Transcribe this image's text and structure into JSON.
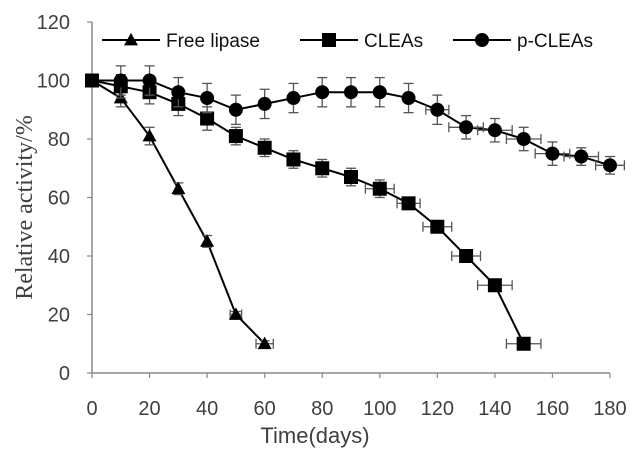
{
  "chart_data": {
    "type": "line",
    "title": "",
    "xlabel": "Time(days)",
    "ylabel": "Relative activity/%",
    "xlim": [
      0,
      180
    ],
    "ylim": [
      0,
      120
    ],
    "x_ticks": [
      0,
      20,
      40,
      60,
      80,
      100,
      120,
      140,
      160,
      180
    ],
    "y_ticks": [
      0,
      20,
      40,
      60,
      80,
      100,
      120
    ],
    "grid": false,
    "legend_position": "top",
    "series": [
      {
        "name": "Free lipase",
        "marker": "triangle",
        "x": [
          0,
          10,
          20,
          30,
          40,
          50,
          60
        ],
        "y": [
          100,
          94,
          81,
          63,
          45,
          20,
          10
        ],
        "y_err": [
          0,
          3,
          3,
          2,
          2,
          1,
          1
        ],
        "x_err": [
          0,
          0,
          0,
          0,
          0,
          2,
          3
        ]
      },
      {
        "name": "CLEAs",
        "marker": "square",
        "x": [
          0,
          10,
          20,
          30,
          40,
          50,
          60,
          70,
          80,
          90,
          100,
          110,
          120,
          130,
          140,
          150
        ],
        "y": [
          100,
          98,
          96,
          92,
          87,
          81,
          77,
          73,
          70,
          67,
          63,
          58,
          50,
          40,
          30,
          10
        ],
        "y_err": [
          0,
          4,
          4,
          4,
          4,
          3,
          3,
          3,
          3,
          3,
          3,
          2,
          2,
          2,
          2,
          2
        ],
        "x_err": [
          0,
          0,
          0,
          0,
          0,
          0,
          0,
          0,
          0,
          0,
          5,
          4,
          5,
          5,
          6,
          6
        ]
      },
      {
        "name": "p-CLEAs",
        "marker": "circle",
        "x": [
          0,
          10,
          20,
          30,
          40,
          50,
          60,
          70,
          80,
          90,
          100,
          110,
          120,
          130,
          140,
          150,
          160,
          170,
          180
        ],
        "y": [
          100,
          100,
          100,
          96,
          94,
          90,
          92,
          94,
          96,
          96,
          96,
          94,
          90,
          84,
          83,
          80,
          75,
          74,
          71
        ],
        "y_err": [
          0,
          5,
          5,
          5,
          5,
          5,
          5,
          5,
          5,
          5,
          5,
          5,
          5,
          4,
          4,
          4,
          4,
          3,
          3
        ],
        "x_err": [
          0,
          0,
          0,
          0,
          0,
          0,
          0,
          0,
          0,
          0,
          0,
          0,
          4,
          6,
          6,
          6,
          6,
          6,
          5
        ]
      }
    ]
  }
}
